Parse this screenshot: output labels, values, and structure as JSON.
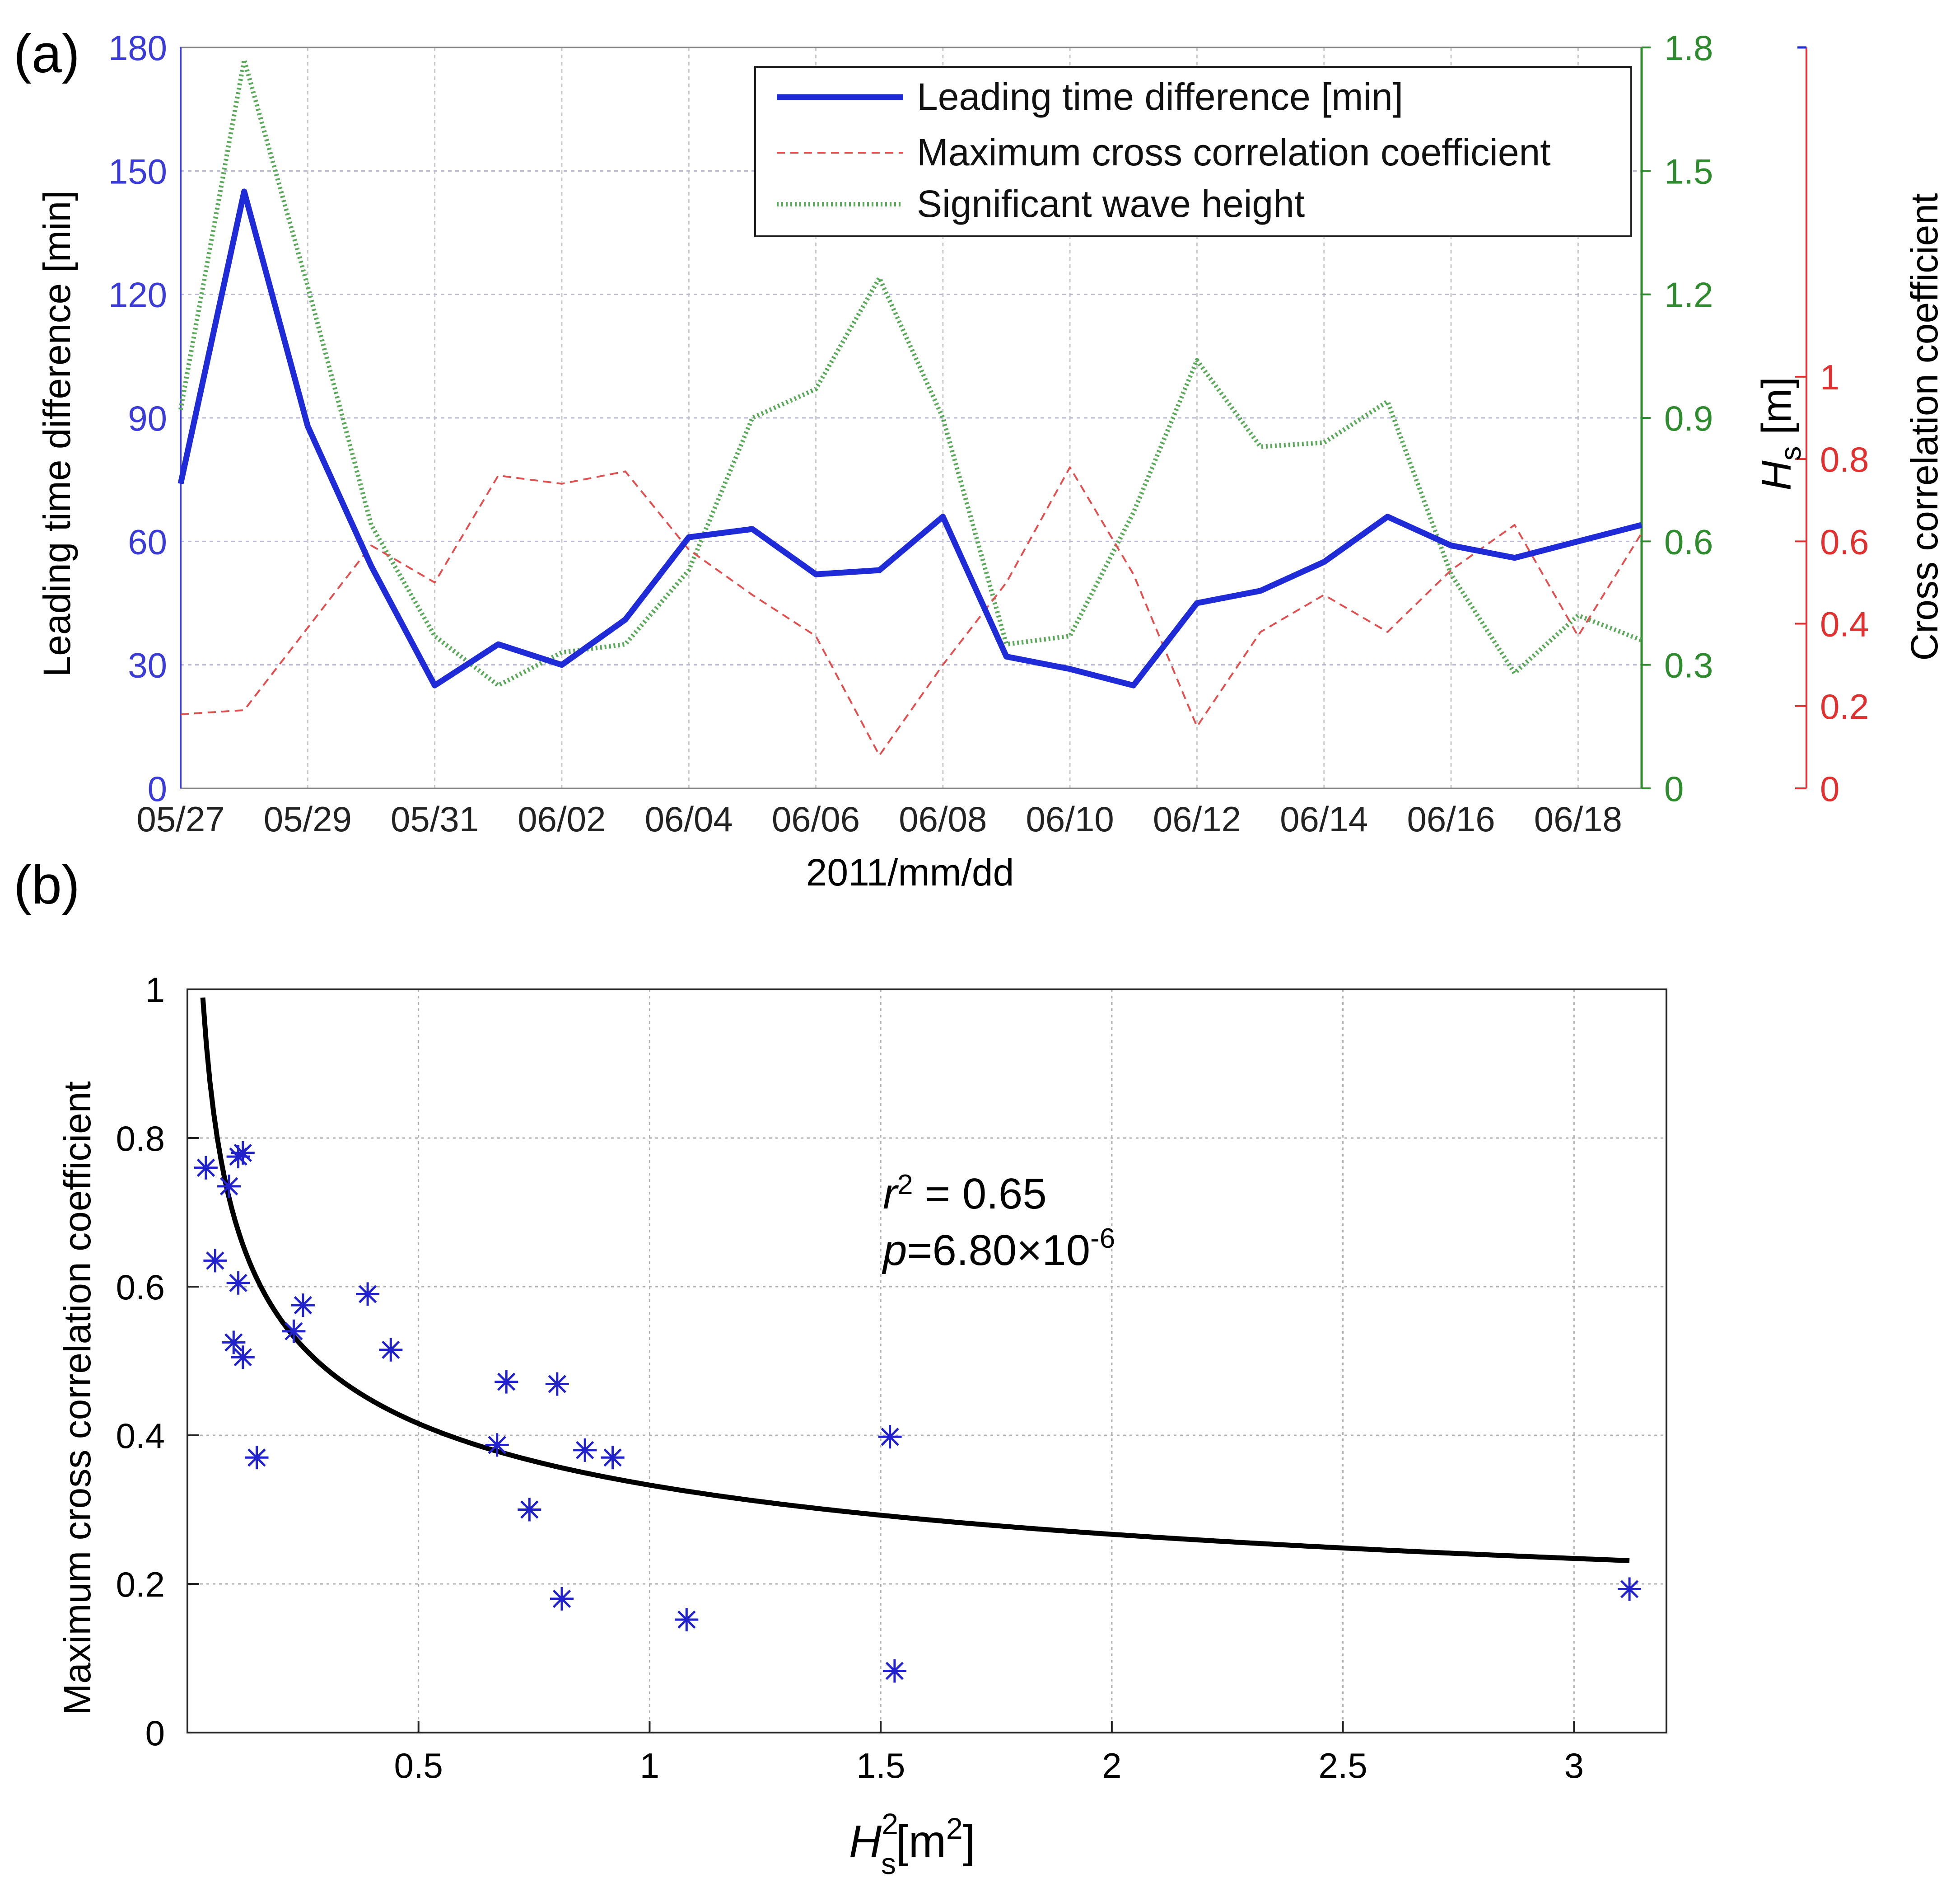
{
  "panels": {
    "a": {
      "label": "(a)"
    },
    "b": {
      "label": "(b)"
    }
  },
  "colors": {
    "lead": "#1f2bd6",
    "xcorr": "#e05050",
    "hs": "#5aa85a",
    "left_axis": "#3b3bd8",
    "hs_axis": "#2e8b2e",
    "corr_axis": "#e03030",
    "scatter": "#2222cc",
    "fit": "#000000",
    "grid": "#b8b8d8"
  },
  "chart_data": [
    {
      "id": "a",
      "type": "line",
      "xlabel": "2011/mm/dd",
      "x": [
        "05/27",
        "05/28",
        "05/29",
        "05/30",
        "05/31",
        "06/01",
        "06/02",
        "06/03",
        "06/04",
        "06/05",
        "06/06",
        "06/07",
        "06/08",
        "06/09",
        "06/10",
        "06/11",
        "06/12",
        "06/13",
        "06/14",
        "06/15",
        "06/16",
        "06/17",
        "06/18",
        "06/19"
      ],
      "xtick_labels": [
        "05/27",
        "05/29",
        "05/31",
        "06/02",
        "06/04",
        "06/06",
        "06/08",
        "06/10",
        "06/12",
        "06/14",
        "06/16",
        "06/18"
      ],
      "xtick_positions": [
        0,
        2,
        4,
        6,
        8,
        10,
        12,
        14,
        16,
        18,
        20,
        22
      ],
      "ylabel_left": "Leading time difference [min]",
      "ylim_left": [
        0,
        180
      ],
      "yticks_left": [
        "0",
        "30",
        "60",
        "90",
        "120",
        "150",
        "180"
      ],
      "ylabel_hs_main": "H",
      "ylabel_hs_sub": "s",
      "ylabel_hs_unit": " [m]",
      "ylim_hs": [
        0,
        1.8
      ],
      "yticks_hs": [
        "0",
        "0.3",
        "0.6",
        "0.9",
        "1.2",
        "1.5",
        "1.8"
      ],
      "ylabel_corr": "Cross correlation coefficient",
      "ylim_corr": [
        0,
        1.8
      ],
      "yticks_corr": [
        "0",
        "0.2",
        "0.4",
        "0.6",
        "0.8",
        "1"
      ],
      "legend_position": "top-right",
      "series": [
        {
          "name": "Leading time difference [min]",
          "axis": "left",
          "style": "solid",
          "values": [
            74,
            145,
            88,
            54,
            25,
            35,
            30,
            41,
            61,
            63,
            52,
            53,
            66,
            32,
            29,
            25,
            45,
            48,
            55,
            66,
            59,
            56,
            60,
            64
          ]
        },
        {
          "name": "Maximum cross correlation coefficient",
          "axis": "corr",
          "style": "dashed",
          "values": [
            0.18,
            0.19,
            0.39,
            0.59,
            0.5,
            0.76,
            0.74,
            0.77,
            0.58,
            0.47,
            0.37,
            0.08,
            0.3,
            0.5,
            0.78,
            0.52,
            0.15,
            0.38,
            0.47,
            0.38,
            0.53,
            0.64,
            0.37,
            0.62
          ]
        },
        {
          "name": "Significant wave height",
          "axis": "hs",
          "style": "dotted",
          "values": [
            0.92,
            1.77,
            1.22,
            0.64,
            0.37,
            0.25,
            0.33,
            0.35,
            0.53,
            0.9,
            0.97,
            1.24,
            0.9,
            0.35,
            0.37,
            0.67,
            1.04,
            0.83,
            0.84,
            0.94,
            0.52,
            0.28,
            0.42,
            0.36
          ]
        }
      ]
    },
    {
      "id": "b",
      "type": "scatter",
      "xlabel_main": "H",
      "xlabel_sup": "2",
      "xlabel_sub": "s",
      "xlabel_unit": "[m",
      "xlabel_unit_sup": "2",
      "xlabel_close": "]",
      "ylabel": "Maximum cross correlation coefficient",
      "xlim": [
        0.0,
        3.2
      ],
      "ylim": [
        0,
        1
      ],
      "xticks": [
        "0.5",
        "1",
        "1.5",
        "2",
        "2.5",
        "3"
      ],
      "yticks": [
        "0",
        "0.2",
        "0.4",
        "0.6",
        "0.8",
        "1"
      ],
      "grid": true,
      "annotation": {
        "r2_var": "r",
        "r2_sup": "2",
        "r2_rest": " = 0.65",
        "p_var": "p",
        "p_rest": "=6.80×10",
        "p_sup": "-6"
      },
      "points": [
        [
          0.04,
          0.76
        ],
        [
          0.06,
          0.635
        ],
        [
          0.09,
          0.735
        ],
        [
          0.11,
          0.775
        ],
        [
          0.12,
          0.78
        ],
        [
          0.11,
          0.605
        ],
        [
          0.1,
          0.525
        ],
        [
          0.12,
          0.505
        ],
        [
          0.15,
          0.37
        ],
        [
          0.23,
          0.54
        ],
        [
          0.25,
          0.575
        ],
        [
          0.39,
          0.59
        ],
        [
          0.44,
          0.515
        ],
        [
          0.67,
          0.387
        ],
        [
          0.69,
          0.472
        ],
        [
          0.74,
          0.3
        ],
        [
          0.8,
          0.469
        ],
        [
          0.81,
          0.18
        ],
        [
          0.86,
          0.38
        ],
        [
          0.92,
          0.37
        ],
        [
          1.08,
          0.152
        ],
        [
          1.52,
          0.398
        ],
        [
          1.53,
          0.083
        ],
        [
          3.12,
          0.193
        ]
      ],
      "fit": {
        "form": "a*x^b",
        "a": 0.333,
        "b": -0.32,
        "x_range": [
          0.01,
          3.12
        ]
      }
    }
  ]
}
